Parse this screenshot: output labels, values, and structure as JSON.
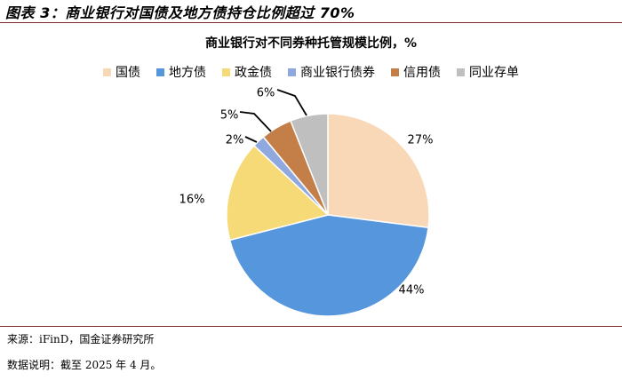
{
  "figure": {
    "title": "图表 3：商业银行对国债及地方债持仓比例超过 70%",
    "source": "来源：iFinD，国金证券研究所",
    "note": "数据说明：截至 2025 年 4 月。"
  },
  "chart_data": {
    "type": "pie",
    "title": "商业银行对不同券种托管规模比例，%",
    "legend_position": "top",
    "slices": [
      {
        "name": "国债",
        "value": 27,
        "label": "27%",
        "color": "#f9d8b8"
      },
      {
        "name": "地方债",
        "value": 44,
        "label": "44%",
        "color": "#5596dc"
      },
      {
        "name": "政金债",
        "value": 16,
        "label": "16%",
        "color": "#f6da78"
      },
      {
        "name": "商业银行债券",
        "value": 2,
        "label": "2%",
        "color": "#8fa8de"
      },
      {
        "name": "信用债",
        "value": 5,
        "label": "5%",
        "color": "#c47f48"
      },
      {
        "name": "同业存单",
        "value": 6,
        "label": "6%",
        "color": "#bfbfbf"
      }
    ]
  }
}
